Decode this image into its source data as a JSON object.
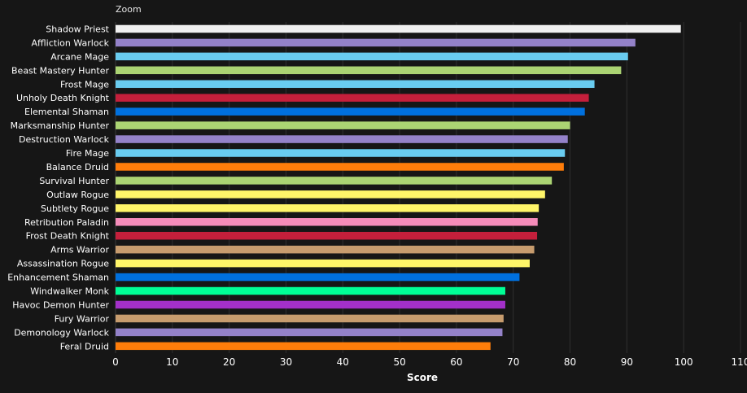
{
  "header": {
    "zoom_label": "Zoom"
  },
  "chart_data": {
    "type": "bar",
    "orientation": "horizontal",
    "categories": [
      "Shadow Priest",
      "Affliction Warlock",
      "Arcane Mage",
      "Beast Mastery Hunter",
      "Frost Mage",
      "Unholy Death Knight",
      "Elemental Shaman",
      "Marksmanship Hunter",
      "Destruction Warlock",
      "Fire Mage",
      "Balance Druid",
      "Survival Hunter",
      "Outlaw Rogue",
      "Subtlety Rogue",
      "Retribution Paladin",
      "Frost Death Knight",
      "Arms Warrior",
      "Assassination Rogue",
      "Enhancement Shaman",
      "Windwalker Monk",
      "Havoc Demon Hunter",
      "Fury Warrior",
      "Demonology Warlock",
      "Feral Druid"
    ],
    "values": [
      99.5,
      91.5,
      90.2,
      89.0,
      84.3,
      83.3,
      82.6,
      80.0,
      79.6,
      79.1,
      78.9,
      76.8,
      75.6,
      74.5,
      74.3,
      74.2,
      73.7,
      72.9,
      71.1,
      68.6,
      68.6,
      68.3,
      68.1,
      66.0
    ],
    "colors": [
      "#f0f0f0",
      "#9482c9",
      "#69ccf0",
      "#abd473",
      "#69ccf0",
      "#c41f3b",
      "#0070de",
      "#abd473",
      "#9482c9",
      "#69ccf0",
      "#ff7d0a",
      "#abd473",
      "#fff569",
      "#fff569",
      "#f58cba",
      "#c41f3b",
      "#c79c6e",
      "#fff569",
      "#0070de",
      "#00ff96",
      "#a330c9",
      "#c79c6e",
      "#9482c9",
      "#ff7d0a"
    ],
    "xlabel": "Score",
    "xlim": [
      0,
      110
    ],
    "xticks": [
      0,
      10,
      20,
      30,
      40,
      50,
      60,
      70,
      80,
      90,
      100,
      110
    ],
    "grid": true,
    "legend": "none"
  }
}
